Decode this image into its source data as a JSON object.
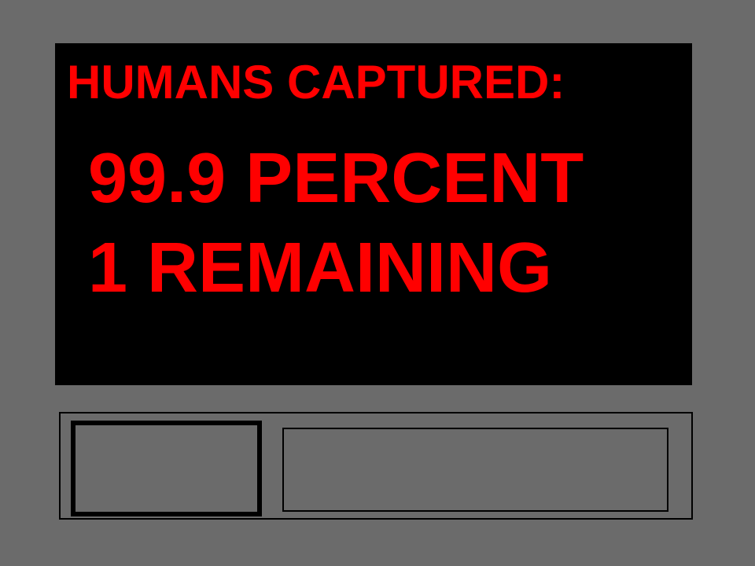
{
  "display": {
    "heading": "HUMANS CAPTURED:",
    "percent_line": "99.9 PERCENT",
    "remaining_line": "1 REMAINING",
    "percent_captured": 99.9,
    "humans_remaining": 1
  },
  "colors": {
    "background": "#6b6b6b",
    "screen": "#000000",
    "text": "#ff0000",
    "outline": "#000000"
  }
}
